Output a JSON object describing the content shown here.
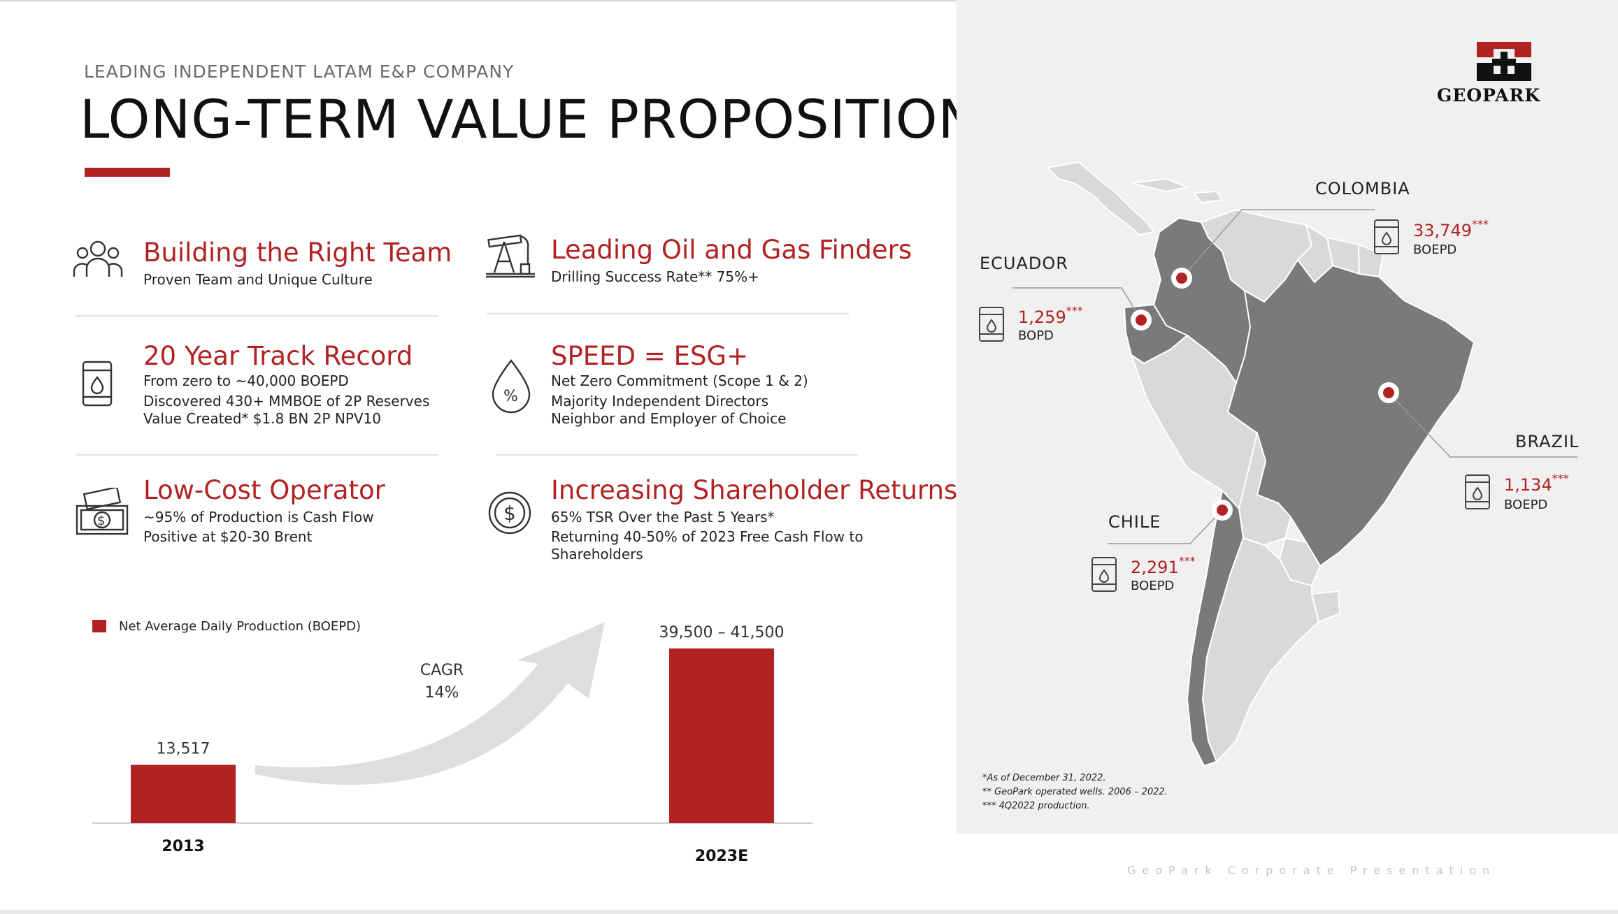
{
  "header": {
    "kicker": "LEADING INDEPENDENT LATAM E&P COMPANY",
    "title": "LONG-TERM VALUE PROPOSITION",
    "accent_color": "#b22222"
  },
  "features": [
    {
      "title": "Building the Right Team",
      "icon": "team-icon",
      "lines": [
        "Proven Team and Unique Culture"
      ]
    },
    {
      "title": "Leading Oil and Gas Finders",
      "icon": "oil-pump-icon",
      "lines": [
        "Drilling Success Rate** 75%+"
      ]
    },
    {
      "title": "20 Year Track Record",
      "icon": "oil-barrel-icon",
      "lines": [
        "From zero to ~40,000 BOEPD",
        "Discovered 430+ MMBOE of 2P Reserves",
        "Value Created* $1.8 BN 2P NPV10"
      ]
    },
    {
      "title": "SPEED = ESG+",
      "icon": "percent-drop-icon",
      "lines": [
        "Net Zero Commitment (Scope 1 & 2)",
        "Majority Independent Directors",
        "Neighbor and Employer of Choice"
      ]
    },
    {
      "title": "Low-Cost Operator",
      "icon": "cash-icon",
      "lines": [
        "~95% of Production is Cash Flow",
        "Positive at $20-30 Brent"
      ]
    },
    {
      "title": "Increasing Shareholder Returns",
      "icon": "dollar-coin-icon",
      "lines": [
        "65% TSR Over the Past 5 Years*",
        "Returning 40-50% of 2023 Free Cash Flow to",
        "Shareholders"
      ]
    }
  ],
  "chart": {
    "legend": "Net Average Daily Production (BOEPD)",
    "cagr_label": "CAGR",
    "cagr_value": "14%"
  },
  "chart_data": {
    "type": "bar",
    "categories": [
      "2013",
      "2023E"
    ],
    "values": [
      13517,
      40500
    ],
    "data_labels": [
      "13,517",
      "39,500 – 41,500"
    ],
    "series": [
      {
        "name": "Net Average Daily Production (BOEPD)",
        "values": [
          13517,
          40500
        ]
      }
    ],
    "ylim": [
      0,
      40500
    ],
    "grid": false,
    "legend_position": "top-left",
    "color": "#b22222"
  },
  "map": {
    "countries": [
      {
        "name": "COLOMBIA",
        "value": "33,749",
        "stars": "***",
        "unit": "BOEPD"
      },
      {
        "name": "ECUADOR",
        "value": "1,259",
        "stars": "***",
        "unit": "BOPD"
      },
      {
        "name": "BRAZIL",
        "value": "1,134",
        "stars": "***",
        "unit": "BOEPD"
      },
      {
        "name": "CHILE",
        "value": "2,291",
        "stars": "***",
        "unit": "BOEPD"
      }
    ],
    "footnotes": [
      "*As of December 31, 2022.",
      "** GeoPark operated wells. 2006 – 2022.",
      "*** 4Q2022 production."
    ]
  },
  "logo": {
    "text": "GEOPARK"
  },
  "footer": "GeoPark Corporate Presentation"
}
